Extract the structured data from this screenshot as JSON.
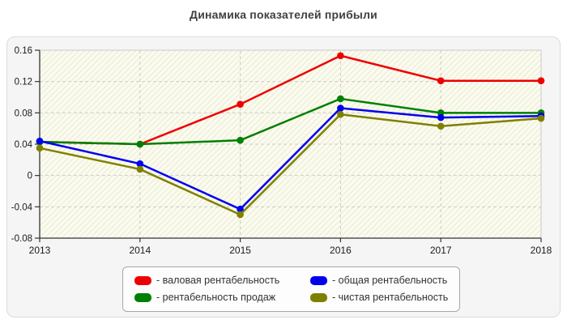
{
  "title": "Динамика показателей прибыли",
  "panel": {
    "background": "#f5f5f5",
    "plot_background": "#fbfbee",
    "hatch_color": "#eaeada",
    "grid_color": "#cccccc",
    "axis_color": "#333333",
    "border_color": "#c9c9c9"
  },
  "chart_data": {
    "type": "line",
    "title": "Динамика показателей прибыли",
    "x": [
      2013,
      2014,
      2015,
      2016,
      2017,
      2018
    ],
    "xlabel": "",
    "ylabel": "",
    "ylim": [
      -0.08,
      0.16
    ],
    "yticks": [
      0.16,
      0.12,
      0.08,
      0.04,
      0,
      -0.04,
      -0.08
    ],
    "ytick_labels": [
      "0.16",
      "0.12",
      "0.08",
      "0.04",
      "0",
      "-0.04",
      "-0.08"
    ],
    "grid": "dashed",
    "legend_position": "bottom-center",
    "series": [
      {
        "name": "валовая рентабельность",
        "legend_label": "- валовая рентабельность",
        "color": "#ee0000",
        "values": [
          0.043,
          0.04,
          0.091,
          0.153,
          0.121,
          0.121
        ]
      },
      {
        "name": "рентабельность продаж",
        "legend_label": "- рентабельность продаж",
        "color": "#008000",
        "values": [
          0.043,
          0.04,
          0.045,
          0.098,
          0.08,
          0.08
        ]
      },
      {
        "name": "общая рентабельность",
        "legend_label": "- общая рентабельность",
        "color": "#0000ee",
        "values": [
          0.044,
          0.015,
          -0.043,
          0.086,
          0.074,
          0.076
        ]
      },
      {
        "name": "чистая рентабельность",
        "legend_label": "- чистая рентабельность",
        "color": "#808000",
        "values": [
          0.035,
          0.008,
          -0.05,
          0.078,
          0.063,
          0.073
        ]
      }
    ]
  },
  "legend": {
    "order": [
      0,
      2,
      1,
      3
    ]
  }
}
